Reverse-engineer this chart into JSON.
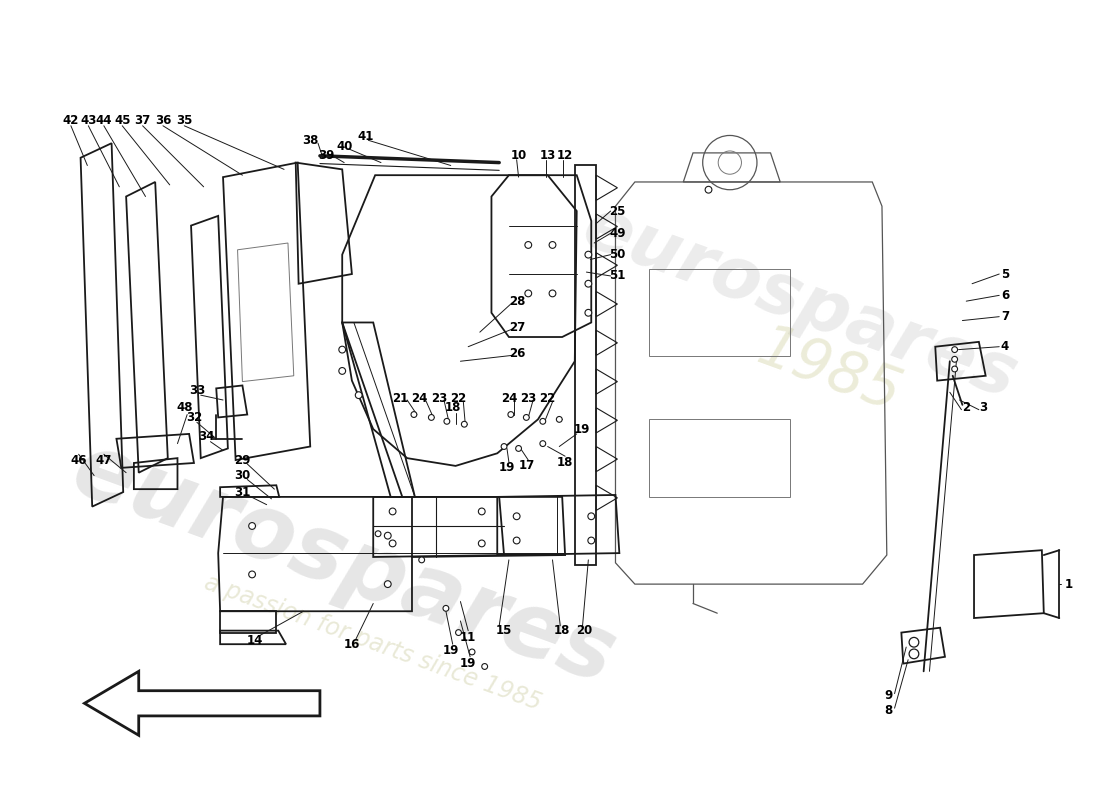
{
  "bg_color": "#ffffff",
  "line_color": "#1a1a1a",
  "lw_main": 1.3,
  "lw_thin": 0.7,
  "label_fs": 8.5,
  "watermark1": "eurospares",
  "watermark2": "a passion for parts since 1985"
}
